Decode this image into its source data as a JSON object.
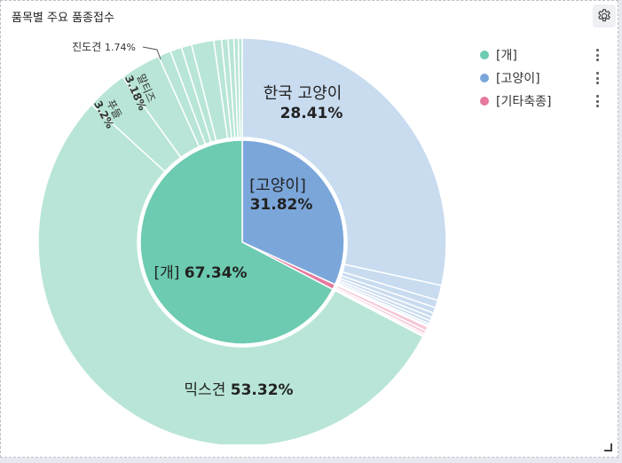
{
  "panel": {
    "title": "품목별 주요 품종접수"
  },
  "legend": [
    {
      "label": "[개]",
      "color": "#6ccbb0"
    },
    {
      "label": "[고양이]",
      "color": "#7ba6da"
    },
    {
      "label": "[기타축종]",
      "color": "#e8789e"
    }
  ],
  "chart_data": {
    "type": "pie",
    "inner": {
      "labels": [
        "[개]",
        "[고양이]",
        "[기타축종]"
      ],
      "values": [
        67.34,
        31.82,
        0.84
      ],
      "display": [
        "67.34%",
        "31.82%",
        ""
      ]
    },
    "outer": {
      "groups": [
        "[개]",
        "[고양이]",
        "[기타축종]"
      ],
      "group_values": [
        67.34,
        31.82,
        0.84
      ],
      "named": [
        {
          "group": "[개]",
          "label": "믹스견",
          "value": 53.32,
          "display": "53.32%"
        },
        {
          "group": "[개]",
          "label": "푸들",
          "value": 3.2,
          "display": "3.2%"
        },
        {
          "group": "[개]",
          "label": "말티즈",
          "value": 3.18,
          "display": "3.18%"
        },
        {
          "group": "[개]",
          "label": "진도견",
          "value": 1.74,
          "display": "1.74%"
        },
        {
          "group": "[고양이]",
          "label": "한국 고양이",
          "value": 28.41,
          "display": "28.41%"
        }
      ],
      "other_slices": {
        "[개]": [
          1.0,
          0.9,
          0.8,
          0.6,
          0.5,
          0.45,
          0.35,
          0.3
        ],
        "[고양이]": [
          1.2,
          0.6,
          0.45,
          0.35,
          0.3,
          0.25,
          0.16,
          0.1
        ],
        "[기타축종]": [
          0.35,
          0.25,
          0.15,
          0.09
        ]
      }
    }
  }
}
